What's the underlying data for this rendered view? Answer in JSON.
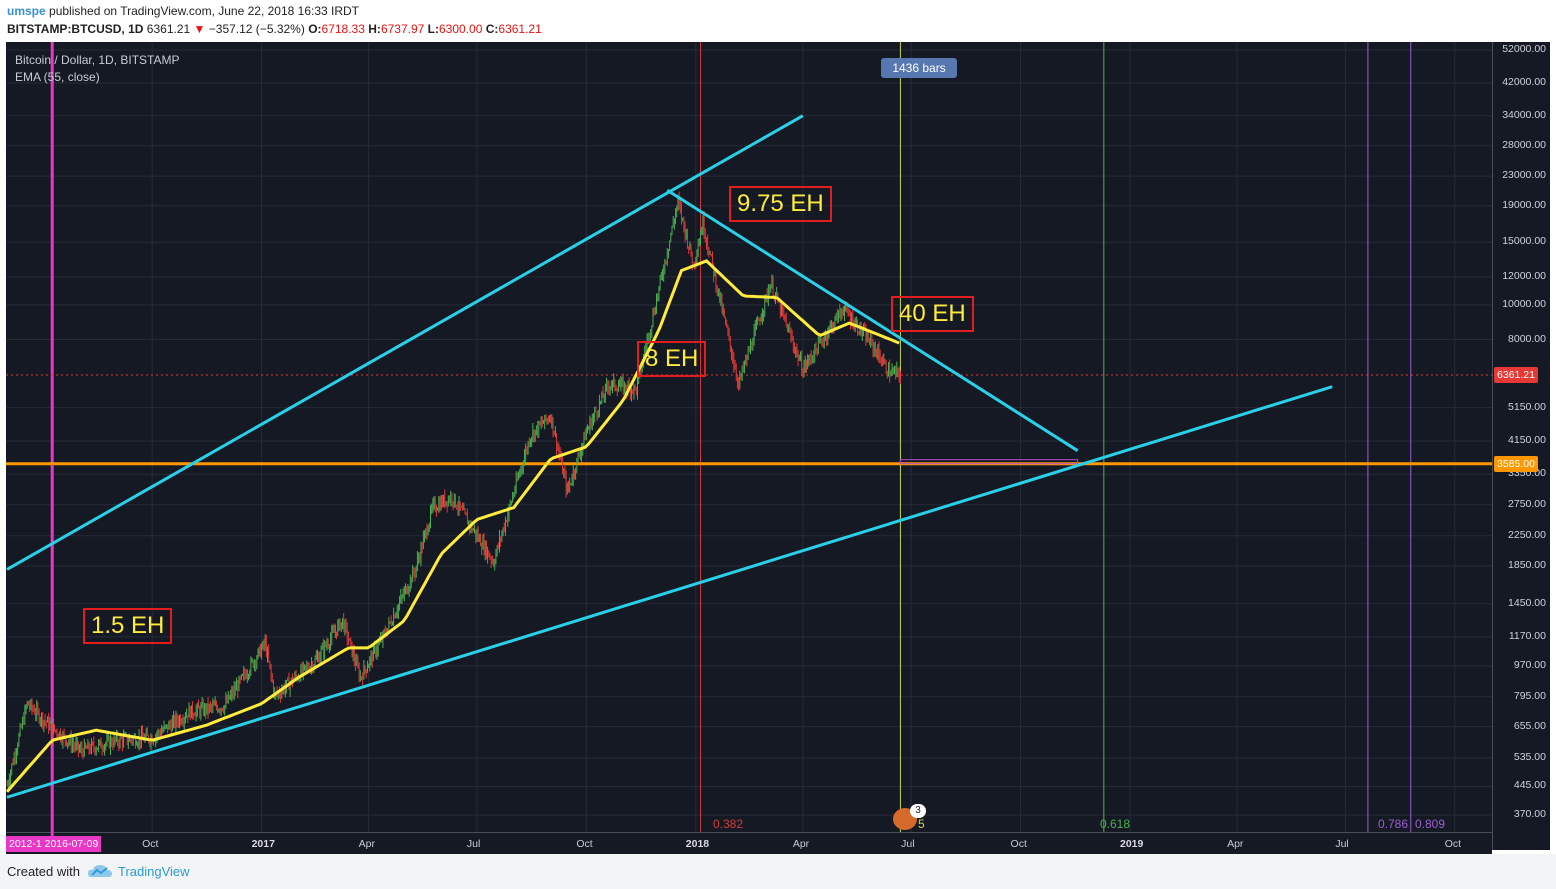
{
  "header": {
    "user": "umspe",
    "published": "published on TradingView.com, June 22, 2018 16:33 IRDT",
    "symbol": "BITSTAMP:BTCUSD, 1D",
    "last": "6361.21",
    "change_arrow": "▼",
    "change": "−357.12 (−5.32%)",
    "o_label": "O:",
    "o_value": "6718.33",
    "h_label": "H:",
    "h_value": "6737.97",
    "l_label": "L:",
    "l_value": "6300.00",
    "c_label": "C:",
    "c_value": "6361.21"
  },
  "legend": {
    "series": "Bitcoin / Dollar, 1D, BITSTAMP",
    "indicator": "EMA (55, close)"
  },
  "bars_badge": "1436 bars",
  "date_box": "2012-1 2016-07-09",
  "price_tags": {
    "current": "6361.21",
    "level": "3585.00"
  },
  "annotations": [
    "1.5 EH",
    "8 EH",
    "9.75 EH",
    "40 EH"
  ],
  "fib_labels": [
    "0.382",
    "0.618",
    "0.786",
    "0.809"
  ],
  "fib_extra": "5",
  "event_badge": "3",
  "footer": {
    "created": "Created with",
    "brand": "TradingView"
  },
  "colors": {
    "background": "#151924",
    "up": "#4caf50",
    "down": "#e53935",
    "ema": "#ffeb3b",
    "trendline": "#29d0e8",
    "level": "#ff9800",
    "annotation_border": "#e11d1d",
    "cycle_marker": "#e838c6"
  },
  "chart_data": {
    "type": "candlestick",
    "title": "Bitcoin / Dollar, 1D, BITSTAMP",
    "y_scale": "log",
    "y_ticks": [
      52000,
      42000,
      34000,
      28000,
      23000,
      19000,
      15000,
      12000,
      10000,
      8000,
      6361.21,
      5150,
      4150,
      3585,
      3350,
      2750,
      2250,
      1850,
      1450,
      1170,
      970,
      795,
      655,
      535,
      445,
      370
    ],
    "y_tick_labels": [
      "52000.00",
      "42000.00",
      "34000.00",
      "28000.00",
      "23000.00",
      "19000.00",
      "15000.00",
      "12000.00",
      "10000.00",
      "8000.00",
      "6361.21",
      "5150.00",
      "4150.00",
      "3585.00",
      "3350.00",
      "2750.00",
      "2250.00",
      "1850.00",
      "1450.00",
      "1170.00",
      "970.00",
      "795.00",
      "655.00",
      "535.00",
      "445.00",
      "370.00"
    ],
    "x_tick_labels": [
      "Oct",
      "2017",
      "Apr",
      "Jul",
      "Oct",
      "2018",
      "Apr",
      "Jul",
      "Oct",
      "2019",
      "Apr",
      "Jul",
      "Oct"
    ],
    "ylim": [
      340,
      56000
    ],
    "price_path": [
      [
        "2016-06-01",
        450
      ],
      [
        "2016-06-18",
        760
      ],
      [
        "2016-07-09",
        650
      ],
      [
        "2016-08-02",
        560
      ],
      [
        "2016-09-01",
        600
      ],
      [
        "2016-10-01",
        610
      ],
      [
        "2016-11-01",
        720
      ],
      [
        "2016-12-01",
        750
      ],
      [
        "2017-01-04",
        1120
      ],
      [
        "2017-01-12",
        800
      ],
      [
        "2017-02-15",
        1000
      ],
      [
        "2017-03-10",
        1300
      ],
      [
        "2017-03-25",
        900
      ],
      [
        "2017-04-15",
        1200
      ],
      [
        "2017-05-10",
        1800
      ],
      [
        "2017-05-25",
        2700
      ],
      [
        "2017-06-10",
        2900
      ],
      [
        "2017-07-15",
        1900
      ],
      [
        "2017-08-15",
        4300
      ],
      [
        "2017-09-01",
        4900
      ],
      [
        "2017-09-15",
        3000
      ],
      [
        "2017-10-01",
        4400
      ],
      [
        "2017-10-20",
        6000
      ],
      [
        "2017-11-12",
        5800
      ],
      [
        "2017-11-28",
        10000
      ],
      [
        "2017-12-17",
        19500
      ],
      [
        "2017-12-30",
        13000
      ],
      [
        "2018-01-07",
        17000
      ],
      [
        "2018-02-06",
        6000
      ],
      [
        "2018-03-05",
        11500
      ],
      [
        "2018-04-01",
        6600
      ],
      [
        "2018-05-05",
        9800
      ],
      [
        "2018-06-01",
        7500
      ],
      [
        "2018-06-12",
        6500
      ],
      [
        "2018-06-22",
        6361.21
      ]
    ],
    "ema_path": [
      [
        "2016-06-01",
        430
      ],
      [
        "2016-07-09",
        600
      ],
      [
        "2016-08-15",
        640
      ],
      [
        "2016-10-01",
        600
      ],
      [
        "2016-11-15",
        660
      ],
      [
        "2017-01-01",
        760
      ],
      [
        "2017-02-01",
        900
      ],
      [
        "2017-03-15",
        1090
      ],
      [
        "2017-04-01",
        1090
      ],
      [
        "2017-05-01",
        1300
      ],
      [
        "2017-06-01",
        2000
      ],
      [
        "2017-07-01",
        2500
      ],
      [
        "2017-08-01",
        2700
      ],
      [
        "2017-09-01",
        3700
      ],
      [
        "2017-10-01",
        4000
      ],
      [
        "2017-11-01",
        5400
      ],
      [
        "2017-12-01",
        8500
      ],
      [
        "2017-12-20",
        12500
      ],
      [
        "2018-01-10",
        13300
      ],
      [
        "2018-02-10",
        10600
      ],
      [
        "2018-03-10",
        10500
      ],
      [
        "2018-04-15",
        8200
      ],
      [
        "2018-05-10",
        8900
      ],
      [
        "2018-06-22",
        7800
      ]
    ],
    "current_price": 6361.21,
    "horizontal_level": 3585,
    "trendlines": [
      {
        "name": "upper-channel",
        "from": [
          "2016-06-01",
          1810
        ],
        "to": [
          "2018-04-01",
          34000
        ]
      },
      {
        "name": "lower-support",
        "from": [
          "2016-06-01",
          415
        ],
        "to": [
          "2019-06-20",
          5900
        ]
      },
      {
        "name": "descending-resistance",
        "from": [
          "2017-12-08",
          21000
        ],
        "to": [
          "2018-11-18",
          3900
        ]
      }
    ],
    "vertical_markers": [
      {
        "date": "2016-07-09",
        "kind": "cycle",
        "color": "#e838c6"
      },
      {
        "date": "2018-01-05",
        "label": "0.382",
        "color": "#d23b3b"
      },
      {
        "date": "2018-06-22",
        "kind": "current",
        "color": "#c8d84a"
      },
      {
        "date": "2018-12-10",
        "label": "0.618",
        "color": "#4caf50"
      },
      {
        "date": "2019-07-20",
        "label": "0.786",
        "color": "#9c5fd0"
      },
      {
        "date": "2019-08-25",
        "label": "0.809",
        "color": "#9c5fd0"
      }
    ],
    "annotations": [
      {
        "text": "1.5 EH",
        "date": "2016-07-20",
        "price": 1300
      },
      {
        "text": "8 EH",
        "date": "2017-11-01",
        "price": 7200
      },
      {
        "text": "9.75 EH",
        "date": "2018-01-15",
        "price": 19000
      },
      {
        "text": "40 EH",
        "date": "2018-06-15",
        "price": 9800
      }
    ]
  }
}
